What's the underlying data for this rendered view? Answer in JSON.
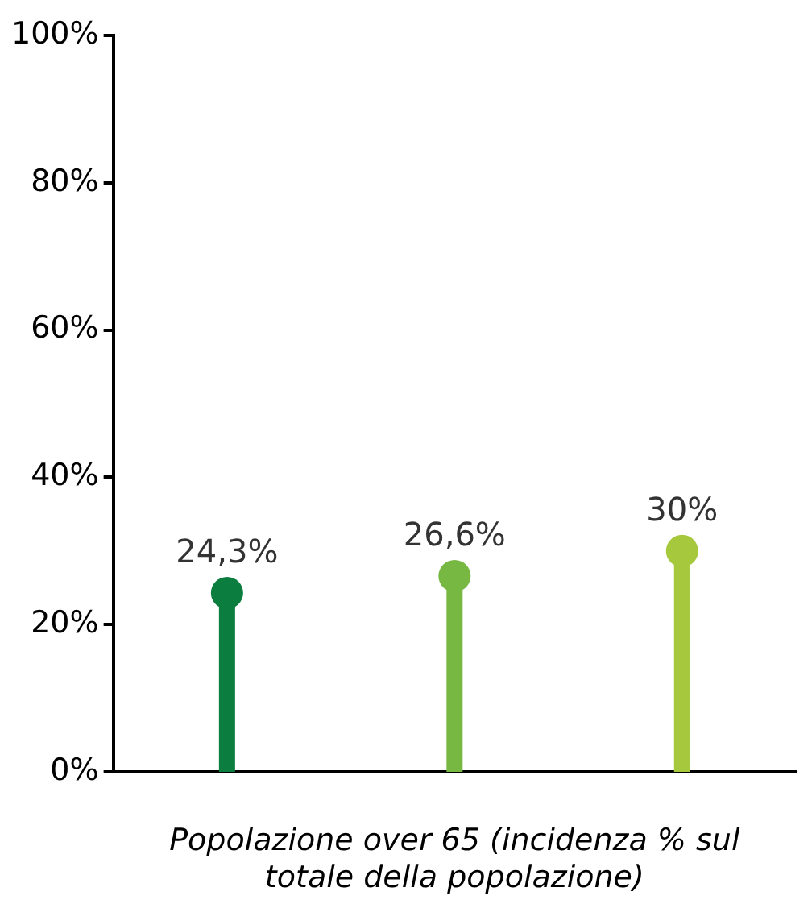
{
  "chart_data": {
    "type": "lollipop",
    "xlabel": "Popolazione over 65 (incidenza % sul totale della popolazione)",
    "categories": [
      null,
      null,
      null
    ],
    "values": [
      24.3,
      26.6,
      30
    ],
    "colors": [
      "#0b7d3e",
      "#77b843",
      "#a5c83d"
    ],
    "value_labels": [
      "24,3%",
      "26,6%",
      "30%"
    ],
    "marker": "circle",
    "ylim": [
      0,
      100
    ],
    "yticks": [
      {
        "value": 0,
        "label": "0%"
      },
      {
        "value": 20,
        "label": "20%"
      },
      {
        "value": 40,
        "label": "40%"
      },
      {
        "value": 60,
        "label": "60%"
      },
      {
        "value": 80,
        "label": "80%"
      },
      {
        "value": 100,
        "label": "100%"
      }
    ],
    "grid": false,
    "legend": false
  }
}
